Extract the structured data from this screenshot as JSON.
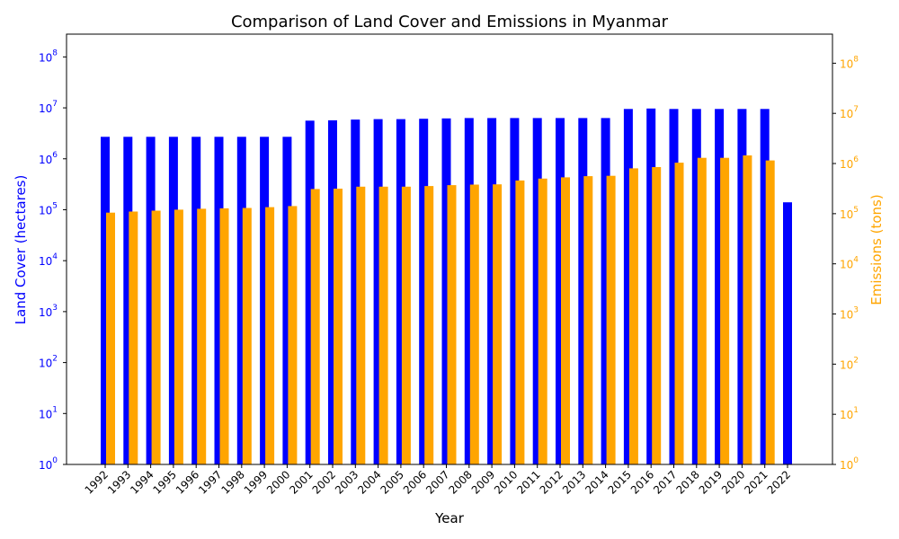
{
  "chart_data": {
    "type": "bar",
    "title": "Comparison of Land Cover and Emissions in Myanmar",
    "xlabel": "Year",
    "y_left": {
      "label": "Land Cover (hectares)",
      "scale": "log",
      "lim": [
        1,
        280000000
      ],
      "color": "#0000ff"
    },
    "y_right": {
      "label": "Emissions (tons)",
      "scale": "log",
      "lim": [
        1,
        380000000
      ],
      "color": "#ffa500"
    },
    "left_tick_labels": [
      "10^0",
      "10^1",
      "10^2",
      "10^3",
      "10^4",
      "10^5",
      "10^6",
      "10^7",
      "10^8"
    ],
    "right_tick_labels": [
      "10^0",
      "10^1",
      "10^2",
      "10^3",
      "10^4",
      "10^5",
      "10^6",
      "10^7",
      "10^8"
    ],
    "grid": false,
    "categories": [
      "1992",
      "1993",
      "1994",
      "1995",
      "1996",
      "1997",
      "1998",
      "1999",
      "2000",
      "2001",
      "2002",
      "2003",
      "2004",
      "2005",
      "2006",
      "2007",
      "2008",
      "2009",
      "2010",
      "2011",
      "2012",
      "2013",
      "2014",
      "2015",
      "2016",
      "2017",
      "2018",
      "2019",
      "2020",
      "2021",
      "2022"
    ],
    "series": [
      {
        "axis": "left",
        "color": "#0000ff",
        "values": [
          2700000,
          2700000,
          2700000,
          2700000,
          2700000,
          2700000,
          2700000,
          2700000,
          2700000,
          5600000,
          5700000,
          5900000,
          6000000,
          6000000,
          6100000,
          6200000,
          6300000,
          6300000,
          6300000,
          6300000,
          6300000,
          6300000,
          6300000,
          9500000,
          9700000,
          9500000,
          9500000,
          9500000,
          9500000,
          9500000,
          140000
        ]
      },
      {
        "axis": "right",
        "color": "#ffa500",
        "values": [
          105000,
          110000,
          115000,
          120000,
          125000,
          128000,
          130000,
          135000,
          142000,
          310000,
          315000,
          345000,
          345000,
          345000,
          355000,
          370000,
          380000,
          385000,
          460000,
          500000,
          530000,
          560000,
          570000,
          800000,
          850000,
          1040000,
          1300000,
          1300000,
          1450000,
          1150000,
          null
        ]
      }
    ]
  }
}
